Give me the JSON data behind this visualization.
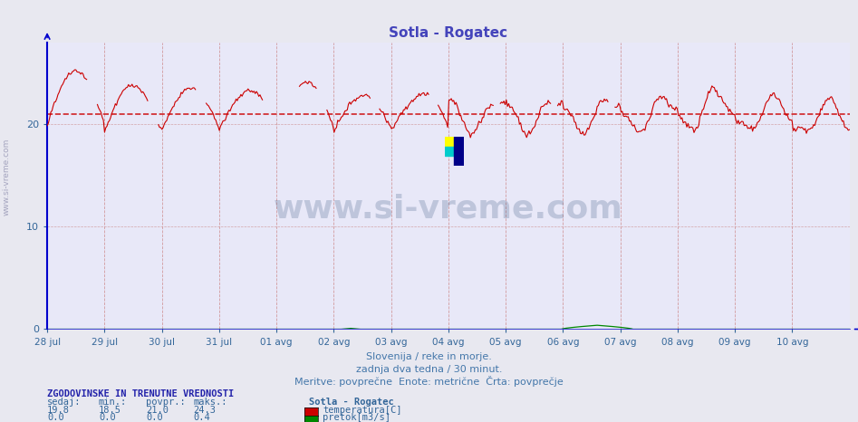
{
  "title": "Sotla - Rogatec",
  "title_color": "#4444bb",
  "bg_color": "#e8e8f0",
  "plot_bg_color": "#e8e8f8",
  "x_labels": [
    "28 jul",
    "29 jul",
    "30 jul",
    "31 jul",
    "01 avg",
    "02 avg",
    "03 avg",
    "04 avg",
    "05 avg",
    "06 avg",
    "07 avg",
    "08 avg",
    "09 avg",
    "10 avg"
  ],
  "y_min": 0,
  "y_max": 28,
  "y_ticks": [
    0,
    10,
    20
  ],
  "avg_line_y": 21.0,
  "avg_line_color": "#cc0000",
  "temp_color": "#cc0000",
  "flow_color": "#008800",
  "grid_color_v": "#cc8888",
  "grid_color_h": "#cc8888",
  "axis_color": "#0000cc",
  "tick_color": "#336699",
  "subtitle1": "Slovenija / reke in morje.",
  "subtitle2": "zadnja dva tedna / 30 minut.",
  "subtitle3": "Meritve: povprečne  Enote: metrične  Črta: povprečje",
  "subtitle_color": "#4477aa",
  "watermark": "www.si-vreme.com",
  "watermark_color": "#1a3a6a",
  "stats_header": "ZGODOVINSKE IN TRENUTNE VREDNOSTI",
  "stats_cols": [
    "sedaj:",
    "min.:",
    "povpr.:",
    "maks.:"
  ],
  "stats_temp": [
    19.8,
    18.5,
    21.0,
    24.3
  ],
  "stats_flow": [
    0.0,
    0.0,
    0.0,
    0.4
  ],
  "legend_station": "Sotla - Rogatec",
  "legend_temp": "temperatura[C]",
  "legend_flow": "pretok[m3/s]",
  "num_points": 672,
  "days": 14
}
